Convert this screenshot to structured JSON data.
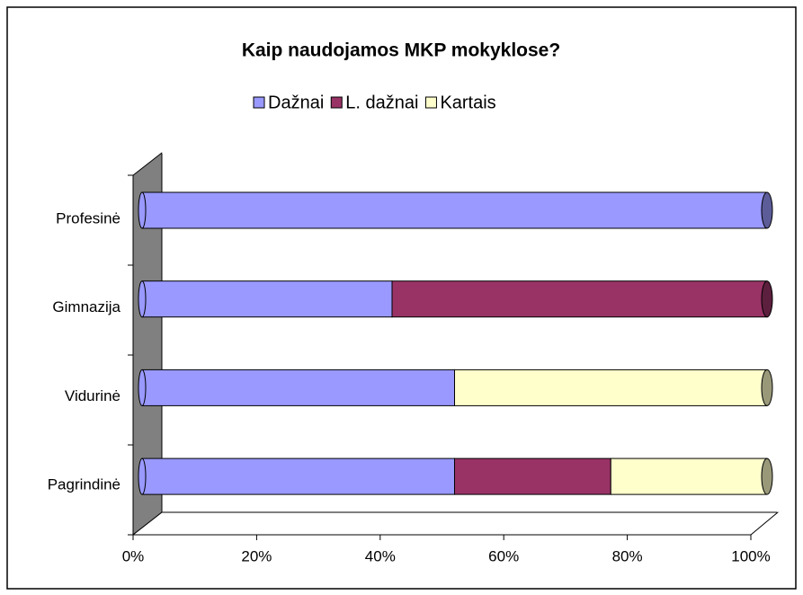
{
  "chart_data": {
    "type": "bar3d_stacked_horizontal",
    "title": "Kaip naudojamos MKP mokyklose?",
    "categories": [
      "Profesinė",
      "Gimnazija",
      "Vidurinė",
      "Pagrindinė"
    ],
    "series": [
      {
        "name": "Dažnai",
        "color": "#9999ff",
        "values": [
          100,
          40,
          50,
          50
        ]
      },
      {
        "name": "L. dažnai",
        "color": "#993366",
        "values": [
          0,
          60,
          0,
          25
        ]
      },
      {
        "name": "Kartais",
        "color": "#ffffcc",
        "values": [
          0,
          0,
          50,
          25
        ]
      }
    ],
    "xlim": [
      0,
      100
    ],
    "xticks": [
      {
        "value": 0,
        "label": "0%"
      },
      {
        "value": 20,
        "label": "20%"
      },
      {
        "value": 40,
        "label": "40%"
      },
      {
        "value": 60,
        "label": "60%"
      },
      {
        "value": 80,
        "label": "80%"
      },
      {
        "value": 100,
        "label": "100%"
      }
    ],
    "legend": "top"
  }
}
